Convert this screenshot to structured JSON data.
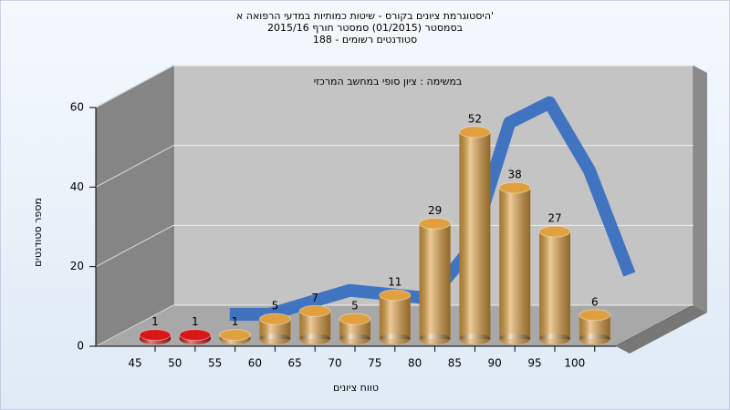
{
  "chart_data": {
    "type": "bar",
    "title": [
      "היסטוגרמת ציונים בקורס - שיטות כמותיות במדעי הרפואה א'",
      "בסמסטר  (01/2015)  סמסטר חורף 2015/16",
      "סטודנטים רשומים - 188"
    ],
    "subtitle": "במשימה : ציון סופי במחשב המרכזי",
    "x_label": "טווח ציונים",
    "y_label": "מספר סטודנטים",
    "categories": [
      "45",
      "50",
      "55",
      "60",
      "65",
      "70",
      "75",
      "80",
      "85",
      "90",
      "95",
      "100"
    ],
    "values": [
      1,
      1,
      1,
      5,
      7,
      5,
      11,
      29,
      52,
      38,
      27,
      6
    ],
    "colors": [
      "#d81818",
      "#d81818",
      "#e0a040",
      "#e0a040",
      "#e0a040",
      "#e0a040",
      "#e0a040",
      "#e0a040",
      "#e0a040",
      "#e0a040",
      "#e0a040",
      "#e0a040"
    ],
    "curve": {
      "color": "#3a70c0",
      "values": [
        null,
        0,
        0,
        3,
        6,
        5,
        4,
        16,
        48,
        53,
        36,
        10
      ]
    },
    "ylim": [
      0,
      60
    ],
    "yticks": [
      0,
      20,
      40,
      60
    ],
    "grid": true
  }
}
